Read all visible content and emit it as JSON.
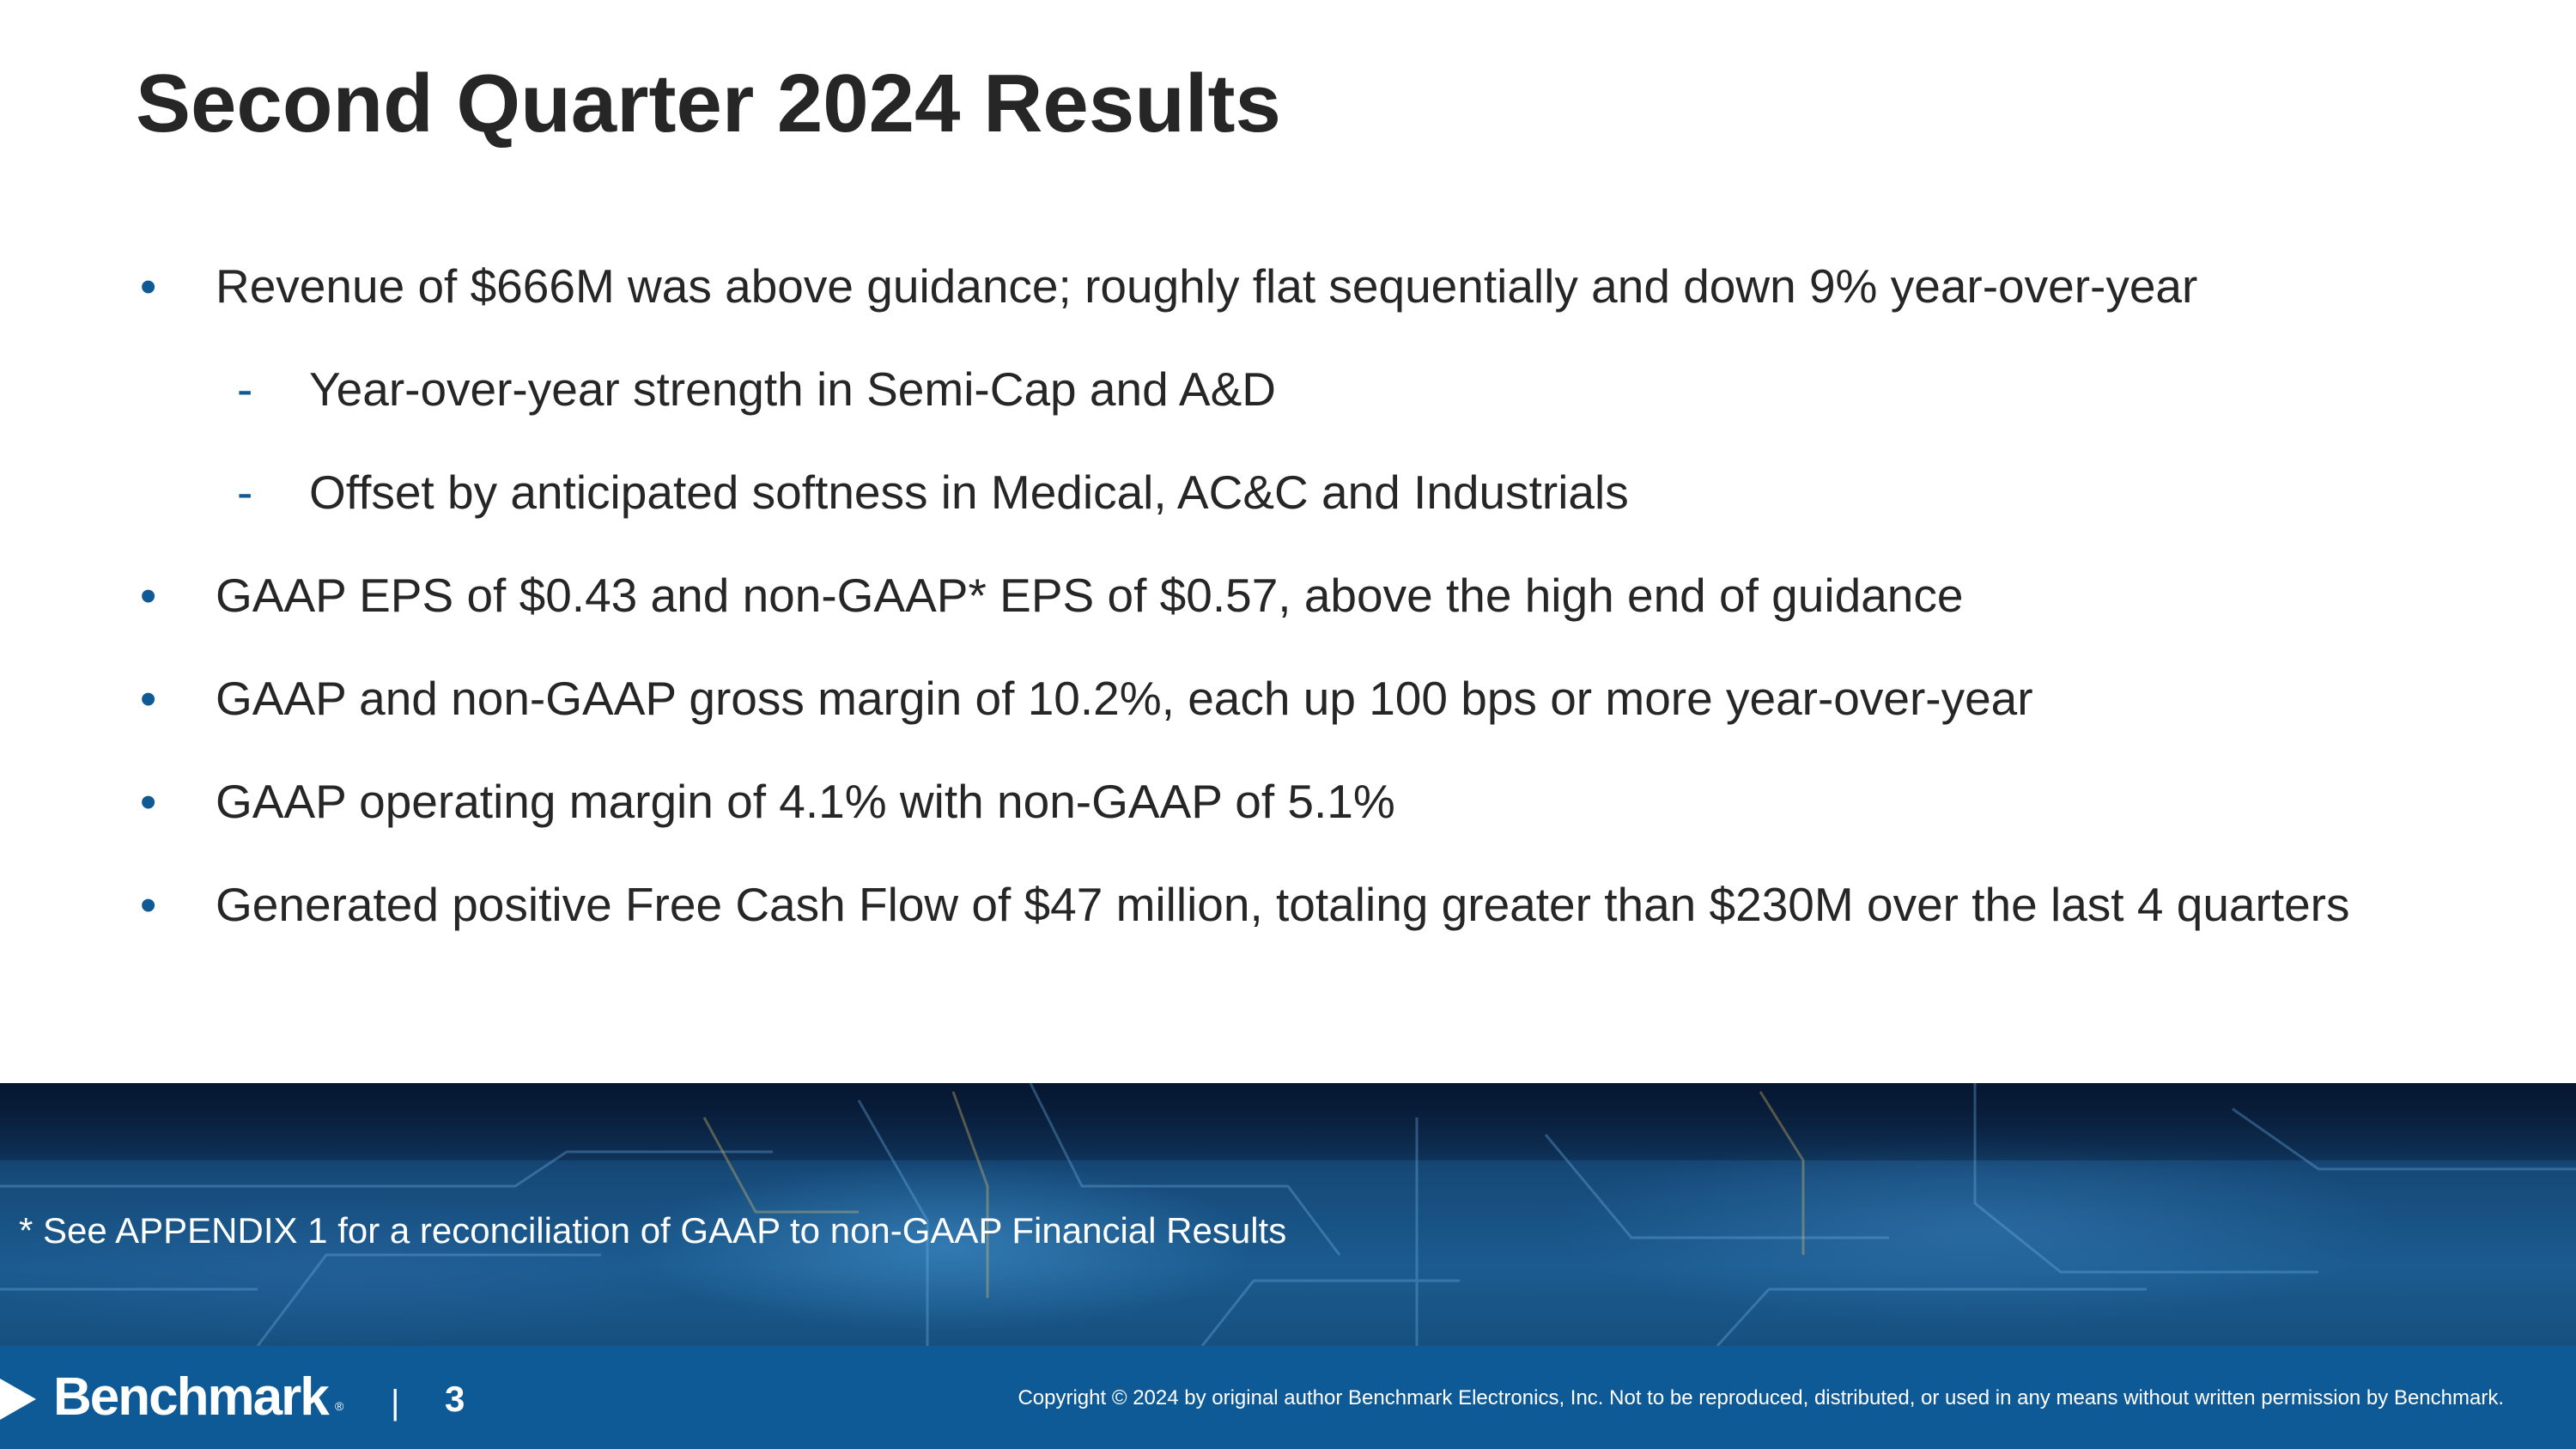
{
  "slide": {
    "title": "Second Quarter 2024 Results"
  },
  "bullets": [
    {
      "marker": "•",
      "text": "Revenue of $666M was above guidance; roughly flat sequentially and down 9% year-over-year"
    },
    {
      "marker": "-",
      "text": "Year-over-year strength in Semi-Cap and A&D"
    },
    {
      "marker": "-",
      "text": "Offset by anticipated softness in Medical, AC&C and Industrials"
    },
    {
      "marker": "•",
      "text": "GAAP EPS of $0.43 and non-GAAP* EPS of $0.57, above the high end of guidance"
    },
    {
      "marker": "•",
      "text": "GAAP and non-GAAP gross margin of 10.2%, each up 100 bps or more year-over-year"
    },
    {
      "marker": "•",
      "text": "GAAP operating margin of 4.1% with non-GAAP of 5.1%"
    },
    {
      "marker": "•",
      "text": "Generated positive Free Cash Flow of $47 million, totaling greater than $230M over the last 4 quarters"
    }
  ],
  "footnote": "* See APPENDIX 1 for a reconciliation of GAAP to non-GAAP Financial Results",
  "footer": {
    "logo_text": "Benchmark",
    "logo_reg": "®",
    "separator": "|",
    "page_number": "3",
    "copyright": "Copyright © 2024 by original author Benchmark Electronics, Inc. Not to be reproduced, distributed, or used in any means without written permission by Benchmark."
  },
  "colors": {
    "title": "#262626",
    "bullet_marker": "#0f5a94",
    "footer_bar": "#0e5a97"
  }
}
